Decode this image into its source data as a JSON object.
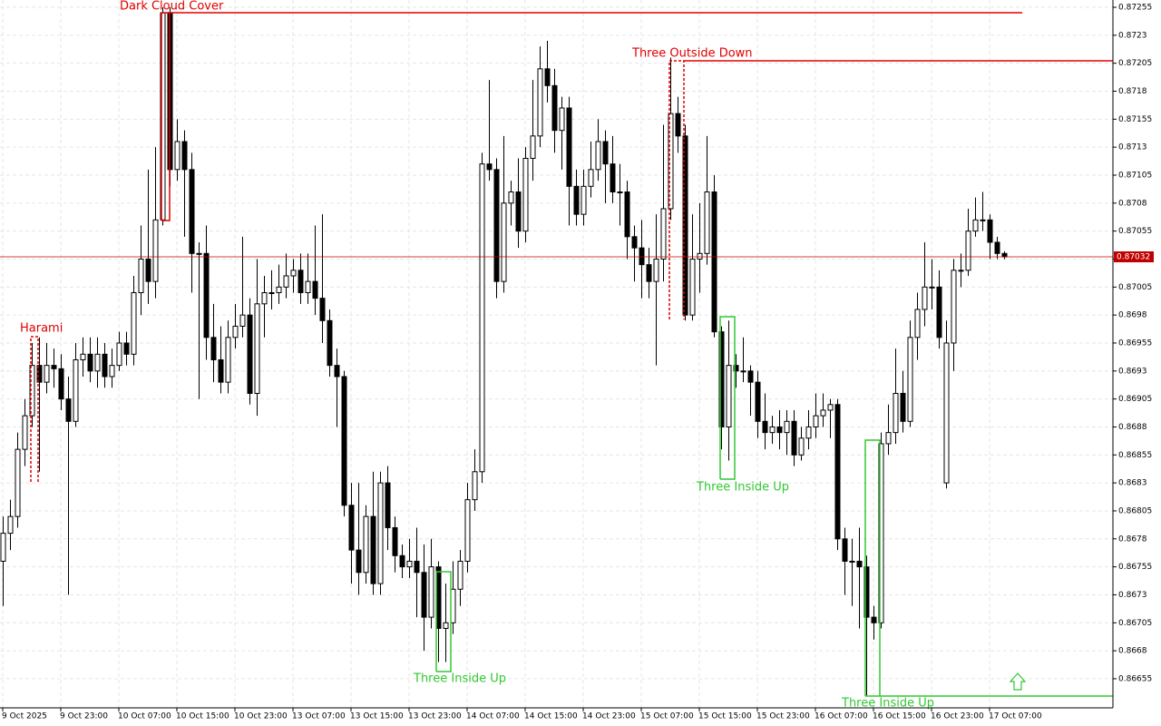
{
  "chart_data": {
    "type": "candlestick",
    "categories": [
      "9 Oct 2025",
      null,
      null,
      null,
      null,
      null,
      null,
      null,
      "9 Oct 23:00",
      null,
      null,
      null,
      null,
      null,
      null,
      null,
      "10 Oct 07:00",
      null,
      null,
      null,
      null,
      null,
      null,
      null,
      "10 Oct 15:00",
      null,
      null,
      null,
      null,
      null,
      null,
      null,
      "10 Oct 23:00",
      null,
      null,
      null,
      null,
      null,
      null,
      null,
      "13 Oct 07:00",
      null,
      null,
      null,
      null,
      null,
      null,
      null,
      "13 Oct 15:00",
      null,
      null,
      null,
      null,
      null,
      null,
      null,
      "13 Oct 23:00",
      null,
      null,
      null,
      null,
      null,
      null,
      null,
      "14 Oct 07:00",
      null,
      null,
      null,
      null,
      null,
      null,
      null,
      "14 Oct 15:00",
      null,
      null,
      null,
      null,
      null,
      null,
      null,
      "14 Oct 23:00",
      null,
      null,
      null,
      null,
      null,
      null,
      null,
      "15 Oct 07:00",
      null,
      null,
      null,
      null,
      null,
      null,
      null,
      "15 Oct 15:00",
      null,
      null,
      null,
      null,
      null,
      null,
      null,
      "15 Oct 23:00",
      null,
      null,
      null,
      null,
      null,
      null,
      null,
      "16 Oct 07:00",
      null,
      null,
      null,
      null,
      null,
      null,
      null,
      "16 Oct 15:00",
      null,
      null,
      null,
      null,
      null,
      null,
      null,
      "16 Oct 23:00",
      null,
      null,
      null,
      null,
      null,
      null,
      null,
      "17 Oct 07:00",
      null,
      null
    ],
    "open": [
      0.8676,
      0.86785,
      0.868,
      0.8686,
      0.8689,
      0.86935,
      0.8692,
      0.86935,
      0.86932,
      0.86905,
      0.86885,
      0.8694,
      0.86945,
      0.8693,
      0.86945,
      0.86925,
      0.86935,
      0.86955,
      0.86945,
      0.87,
      0.8703,
      0.8701,
      0.87065,
      0.8725,
      0.8711,
      0.87135,
      0.8711,
      0.87035,
      0.87035,
      0.8696,
      0.8694,
      0.8692,
      0.8696,
      0.8697,
      0.8698,
      0.8691,
      0.8699,
      0.87,
      0.87,
      0.87005,
      0.87015,
      0.8702,
      0.87,
      0.8701,
      0.86995,
      0.86975,
      0.86935,
      0.86925,
      0.8681,
      0.8677,
      0.8675,
      0.868,
      0.8674,
      0.8683,
      0.8679,
      0.86765,
      0.86755,
      0.8676,
      0.8675,
      0.8671,
      0.86755,
      0.867,
      0.86705,
      0.86735,
      0.8676,
      0.86815,
      0.8684,
      0.87115,
      0.8711,
      0.8701,
      0.8708,
      0.8709,
      0.87055,
      0.8712,
      0.8714,
      0.872,
      0.87185,
      0.87145,
      0.87165,
      0.87095,
      0.8707,
      0.87095,
      0.8711,
      0.87135,
      0.87115,
      0.8709,
      0.8709,
      0.8705,
      0.8704,
      0.87025,
      0.8701,
      0.8703,
      0.87075,
      0.8716,
      0.8714,
      0.8698,
      0.8703,
      0.87035,
      0.8709,
      0.86965,
      0.8688,
      0.86935,
      0.8693,
      0.8693,
      0.8692,
      0.86885,
      0.86875,
      0.8688,
      0.86875,
      0.86885,
      0.86855,
      0.8687,
      0.8688,
      0.8689,
      0.86895,
      0.869,
      0.8678,
      0.8676,
      0.8676,
      0.86755,
      0.8671,
      0.86705,
      0.86865,
      0.86875,
      0.8691,
      0.86885,
      0.8696,
      0.86985,
      0.87005,
      0.87005,
      0.8683,
      0.86955,
      0.8702,
      0.8702,
      0.87055,
      0.87065,
      0.87065,
      0.87045,
      0.87035
    ],
    "high": [
      0.868,
      0.86815,
      0.86875,
      0.86905,
      0.86955,
      0.8696,
      0.86955,
      0.8695,
      0.86945,
      0.86925,
      0.86955,
      0.8696,
      0.8696,
      0.8696,
      0.86955,
      0.8695,
      0.86965,
      0.86965,
      0.87015,
      0.8706,
      0.8711,
      0.8713,
      0.87255,
      0.87255,
      0.87155,
      0.87145,
      0.87125,
      0.87045,
      0.8706,
      0.8699,
      0.8697,
      0.86975,
      0.8699,
      0.8705,
      0.86995,
      0.8703,
      0.87015,
      0.8702,
      0.87025,
      0.87035,
      0.8703,
      0.87035,
      0.87035,
      0.8706,
      0.8707,
      0.86985,
      0.8695,
      0.8693,
      0.8683,
      0.8683,
      0.8681,
      0.8684,
      0.8684,
      0.86845,
      0.868,
      0.86775,
      0.8678,
      0.8679,
      0.86775,
      0.8678,
      0.8676,
      0.8674,
      0.8676,
      0.8677,
      0.8683,
      0.8686,
      0.87125,
      0.8719,
      0.8712,
      0.8714,
      0.871,
      0.8712,
      0.8713,
      0.8719,
      0.8722,
      0.87225,
      0.872,
      0.87175,
      0.87175,
      0.8711,
      0.8711,
      0.87135,
      0.87155,
      0.87145,
      0.8714,
      0.87115,
      0.871,
      0.8706,
      0.87065,
      0.8704,
      0.8707,
      0.8715,
      0.8721,
      0.87175,
      0.8715,
      0.8707,
      0.8708,
      0.8714,
      0.87105,
      0.8697,
      0.86975,
      0.86945,
      0.8696,
      0.86935,
      0.8693,
      0.8691,
      0.8689,
      0.86895,
      0.86895,
      0.86895,
      0.8688,
      0.86895,
      0.8691,
      0.8691,
      0.86905,
      0.86905,
      0.8679,
      0.8678,
      0.8679,
      0.86765,
      0.8672,
      0.86875,
      0.869,
      0.8695,
      0.8693,
      0.86975,
      0.87,
      0.87045,
      0.8703,
      0.8702,
      0.86975,
      0.8703,
      0.87035,
      0.87075,
      0.87085,
      0.8709,
      0.8707,
      0.8705,
      0.87037
    ],
    "low": [
      0.8672,
      0.8677,
      0.8679,
      0.86845,
      0.8688,
      0.8684,
      0.8691,
      0.86915,
      0.86895,
      0.8673,
      0.8688,
      0.86925,
      0.8692,
      0.86915,
      0.86915,
      0.86915,
      0.8693,
      0.86935,
      0.86935,
      0.8698,
      0.8699,
      0.86995,
      0.8706,
      0.87095,
      0.871,
      0.8705,
      0.87,
      0.86905,
      0.8694,
      0.8692,
      0.8691,
      0.8691,
      0.8695,
      0.8696,
      0.869,
      0.8689,
      0.8696,
      0.86985,
      0.8699,
      0.86995,
      0.87,
      0.8699,
      0.8699,
      0.8698,
      0.86955,
      0.86925,
      0.8688,
      0.868,
      0.8674,
      0.8673,
      0.8674,
      0.8673,
      0.8673,
      0.8677,
      0.8675,
      0.86745,
      0.86745,
      0.8671,
      0.8668,
      0.867,
      0.8667,
      0.8667,
      0.86695,
      0.8672,
      0.8675,
      0.86805,
      0.8683,
      0.871,
      0.86995,
      0.87,
      0.8706,
      0.8704,
      0.87045,
      0.871,
      0.8713,
      0.8717,
      0.87125,
      0.8711,
      0.8706,
      0.8706,
      0.8706,
      0.87085,
      0.871,
      0.8708,
      0.8708,
      0.8706,
      0.8703,
      0.8701,
      0.86995,
      0.86995,
      0.86935,
      0.8701,
      0.87065,
      0.87125,
      0.86975,
      0.86975,
      0.87,
      0.87025,
      0.8696,
      0.8686,
      0.8685,
      0.86915,
      0.8692,
      0.8689,
      0.8687,
      0.8686,
      0.86865,
      0.8686,
      0.86855,
      0.86845,
      0.8685,
      0.8686,
      0.8687,
      0.8688,
      0.8687,
      0.8677,
      0.8673,
      0.8672,
      0.867,
      0.8664,
      0.8669,
      0.867,
      0.86855,
      0.86865,
      0.86875,
      0.8688,
      0.8694,
      0.8697,
      0.86985,
      0.8695,
      0.86825,
      0.8693,
      0.87005,
      0.87015,
      0.8705,
      0.87055,
      0.8703,
      0.8703,
      0.8703
    ],
    "close": [
      0.86785,
      0.868,
      0.8686,
      0.8689,
      0.86935,
      0.8692,
      0.86935,
      0.86932,
      0.86905,
      0.86885,
      0.8694,
      0.86945,
      0.8693,
      0.86945,
      0.86925,
      0.86935,
      0.86955,
      0.86945,
      0.87,
      0.8703,
      0.8701,
      0.87065,
      0.8725,
      0.8711,
      0.87135,
      0.8711,
      0.87035,
      0.87035,
      0.8696,
      0.8694,
      0.8692,
      0.8696,
      0.8697,
      0.8698,
      0.8691,
      0.8699,
      0.87,
      0.87,
      0.87005,
      0.87015,
      0.8702,
      0.87,
      0.8701,
      0.86995,
      0.86975,
      0.86935,
      0.86925,
      0.8681,
      0.8677,
      0.8675,
      0.868,
      0.8674,
      0.8683,
      0.8679,
      0.86765,
      0.86755,
      0.8676,
      0.8675,
      0.8671,
      0.86755,
      0.867,
      0.86705,
      0.86735,
      0.8676,
      0.86815,
      0.8684,
      0.87115,
      0.8711,
      0.8701,
      0.8708,
      0.8709,
      0.87055,
      0.8712,
      0.8714,
      0.872,
      0.87185,
      0.87145,
      0.87165,
      0.87095,
      0.8707,
      0.87095,
      0.8711,
      0.87135,
      0.87115,
      0.8709,
      0.8709,
      0.8705,
      0.8704,
      0.87025,
      0.8701,
      0.8703,
      0.87075,
      0.8716,
      0.8714,
      0.8698,
      0.8703,
      0.87035,
      0.8709,
      0.86965,
      0.8688,
      0.86935,
      0.8693,
      0.8693,
      0.8692,
      0.86885,
      0.86875,
      0.8688,
      0.86875,
      0.86885,
      0.86855,
      0.8687,
      0.8688,
      0.8689,
      0.86895,
      0.869,
      0.8678,
      0.8676,
      0.8676,
      0.86755,
      0.8671,
      0.86705,
      0.86865,
      0.86875,
      0.8691,
      0.86885,
      0.8696,
      0.86985,
      0.87005,
      0.87005,
      0.8696,
      0.86955,
      0.8702,
      0.8702,
      0.87055,
      0.87065,
      0.87065,
      0.87045,
      0.87035,
      0.87032
    ],
    "ylim": [
      0.86629,
      0.872615
    ],
    "yticks": [
      0.86655,
      0.8668,
      0.86705,
      0.8673,
      0.86755,
      0.8678,
      0.86805,
      0.8683,
      0.86855,
      0.8688,
      0.86905,
      0.8693,
      0.86955,
      0.8698,
      0.87005,
      0.8703,
      0.87055,
      0.8708,
      0.87105,
      0.8713,
      0.87155,
      0.8718,
      0.87205,
      0.8723,
      0.87255
    ],
    "grid": true,
    "up_color": "#ffffff",
    "down_color": "#000000",
    "current_price": 0.87032,
    "current_price_color": "#c00000",
    "annotations": [
      {
        "text": "Harami",
        "color": "#e00000"
      },
      {
        "text": "Dark Cloud Cover",
        "color": "#e00000"
      },
      {
        "text": "Three Outside Down",
        "color": "#e00000"
      },
      {
        "text": "Three Inside Up",
        "color": "#32c832"
      },
      {
        "text": "Three Inside Up",
        "color": "#32c832"
      },
      {
        "text": "Three Inside Up",
        "color": "#32c832"
      }
    ]
  }
}
